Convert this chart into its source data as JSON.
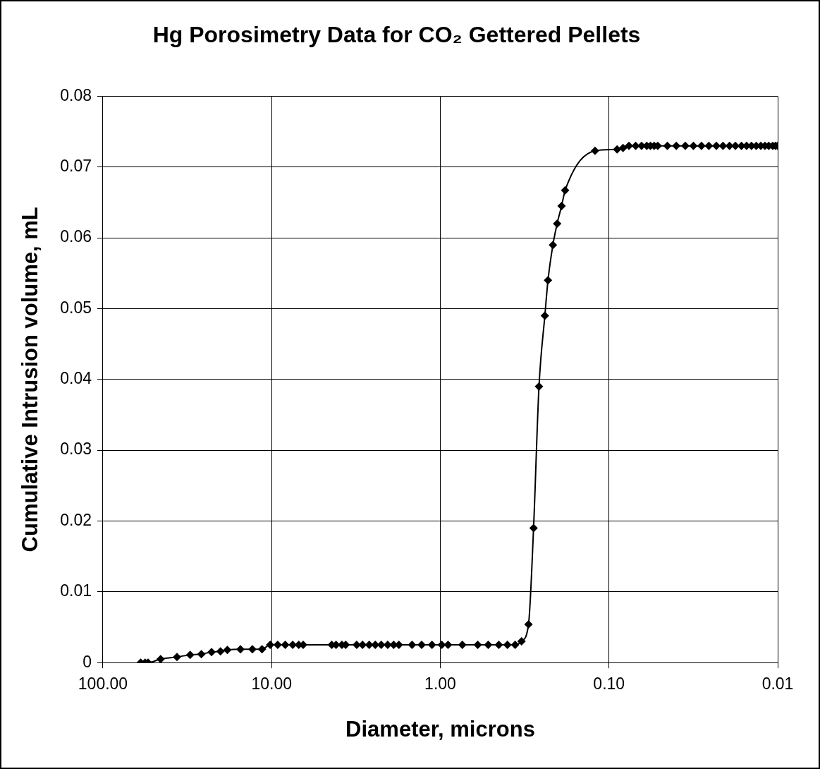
{
  "chart_data": {
    "type": "line",
    "title": "Hg Porosimetry Data for CO₂ Gettered Pellets",
    "xlabel": "Diameter, microns",
    "ylabel": "Cumulative Intrusion volume, mL",
    "log": "x",
    "xlim": [
      100,
      0.01
    ],
    "xticks": [
      {
        "value": 100,
        "label": "100.00"
      },
      {
        "value": 10,
        "label": "10.00"
      },
      {
        "value": 1,
        "label": "1.00"
      },
      {
        "value": 0.1,
        "label": "0.10"
      },
      {
        "value": 0.01,
        "label": "0.01"
      }
    ],
    "ylim": [
      0,
      0.08
    ],
    "yticks": [
      0,
      0.01,
      0.02,
      0.03,
      0.04,
      0.05,
      0.06,
      0.07,
      0.08
    ],
    "grid": true,
    "legend": false,
    "marker": "diamond",
    "line_style": "solid",
    "series": [
      {
        "color": "#000000",
        "x": [
          59.7,
          56.2,
          54.0,
          45.5,
          36.4,
          30.4,
          26.1,
          22.7,
          20.1,
          18.3,
          15.3,
          13.0,
          11.4,
          10.2,
          9.2,
          8.3,
          7.5,
          6.9,
          6.5,
          4.4,
          4.15,
          3.83,
          3.64,
          3.13,
          2.89,
          2.64,
          2.43,
          2.24,
          2.05,
          1.89,
          1.76,
          1.47,
          1.29,
          1.12,
          0.98,
          0.9,
          0.74,
          0.6,
          0.52,
          0.45,
          0.4,
          0.36,
          0.33,
          0.3,
          0.28,
          0.26,
          0.24,
          0.23,
          0.215,
          0.203,
          0.191,
          0.182,
          0.121,
          0.0895,
          0.0826,
          0.0762,
          0.0695,
          0.0641,
          0.0597,
          0.0568,
          0.054,
          0.0514,
          0.0451,
          0.0399,
          0.0353,
          0.0316,
          0.0283,
          0.0256,
          0.0231,
          0.0211,
          0.0193,
          0.0178,
          0.0164,
          0.0153,
          0.0143,
          0.0134,
          0.0126,
          0.0119,
          0.0113,
          0.0107,
          0.0103,
          0.01
        ],
        "values": [
          0,
          0,
          0,
          0.0005,
          0.0008,
          0.0011,
          0.0012,
          0.0015,
          0.0016,
          0.0018,
          0.0019,
          0.0019,
          0.0019,
          0.0025,
          0.0025,
          0.0025,
          0.0025,
          0.0025,
          0.0025,
          0.0025,
          0.0025,
          0.0025,
          0.0025,
          0.0025,
          0.0025,
          0.0025,
          0.0025,
          0.0025,
          0.0025,
          0.0025,
          0.0025,
          0.0025,
          0.0025,
          0.0025,
          0.0025,
          0.0025,
          0.0025,
          0.0025,
          0.0025,
          0.0025,
          0.0025,
          0.0025,
          0.003,
          0.0054,
          0.019,
          0.039,
          0.049,
          0.054,
          0.059,
          0.062,
          0.0645,
          0.0667,
          0.0723,
          0.0725,
          0.0727,
          0.073,
          0.073,
          0.073,
          0.073,
          0.073,
          0.073,
          0.073,
          0.073,
          0.073,
          0.073,
          0.073,
          0.073,
          0.073,
          0.073,
          0.073,
          0.073,
          0.073,
          0.073,
          0.073,
          0.073,
          0.073,
          0.073,
          0.073,
          0.073,
          0.073,
          0.073,
          0.073
        ]
      }
    ]
  }
}
